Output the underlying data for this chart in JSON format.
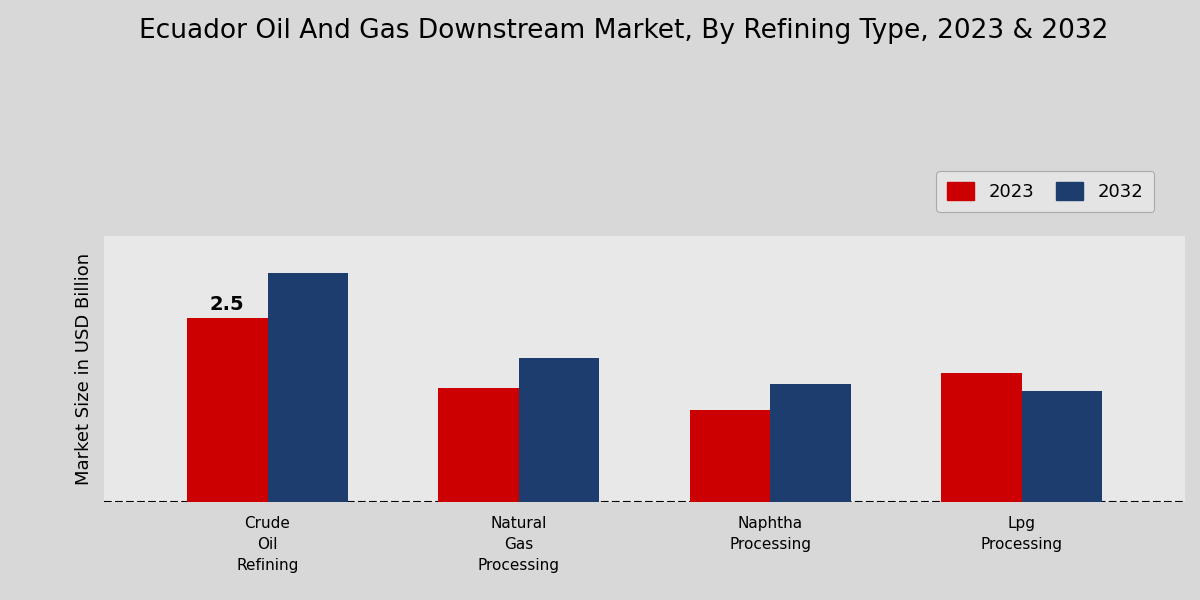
{
  "title": "Ecuador Oil And Gas Downstream Market, By Refining Type, 2023 & 2032",
  "ylabel": "Market Size in USD Billion",
  "categories": [
    "Crude\nOil\nRefining",
    "Natural\nGas\nProcessing",
    "Naphtha\nProcessing",
    "Lpg\nProcessing"
  ],
  "values_2023": [
    2.5,
    1.55,
    1.25,
    1.75
  ],
  "values_2032": [
    3.1,
    1.95,
    1.6,
    1.5
  ],
  "color_2023": "#cc0000",
  "color_2032": "#1c3d6e",
  "bar_width": 0.32,
  "ylim": [
    0,
    3.6
  ],
  "annotation_value": "2.5",
  "legend_labels": [
    "2023",
    "2032"
  ],
  "bg_light": "#f0f0f0",
  "bg_dark": "#d0d0d0",
  "title_fontsize": 19,
  "label_fontsize": 12,
  "tick_fontsize": 11,
  "ylabel_fontsize": 13
}
